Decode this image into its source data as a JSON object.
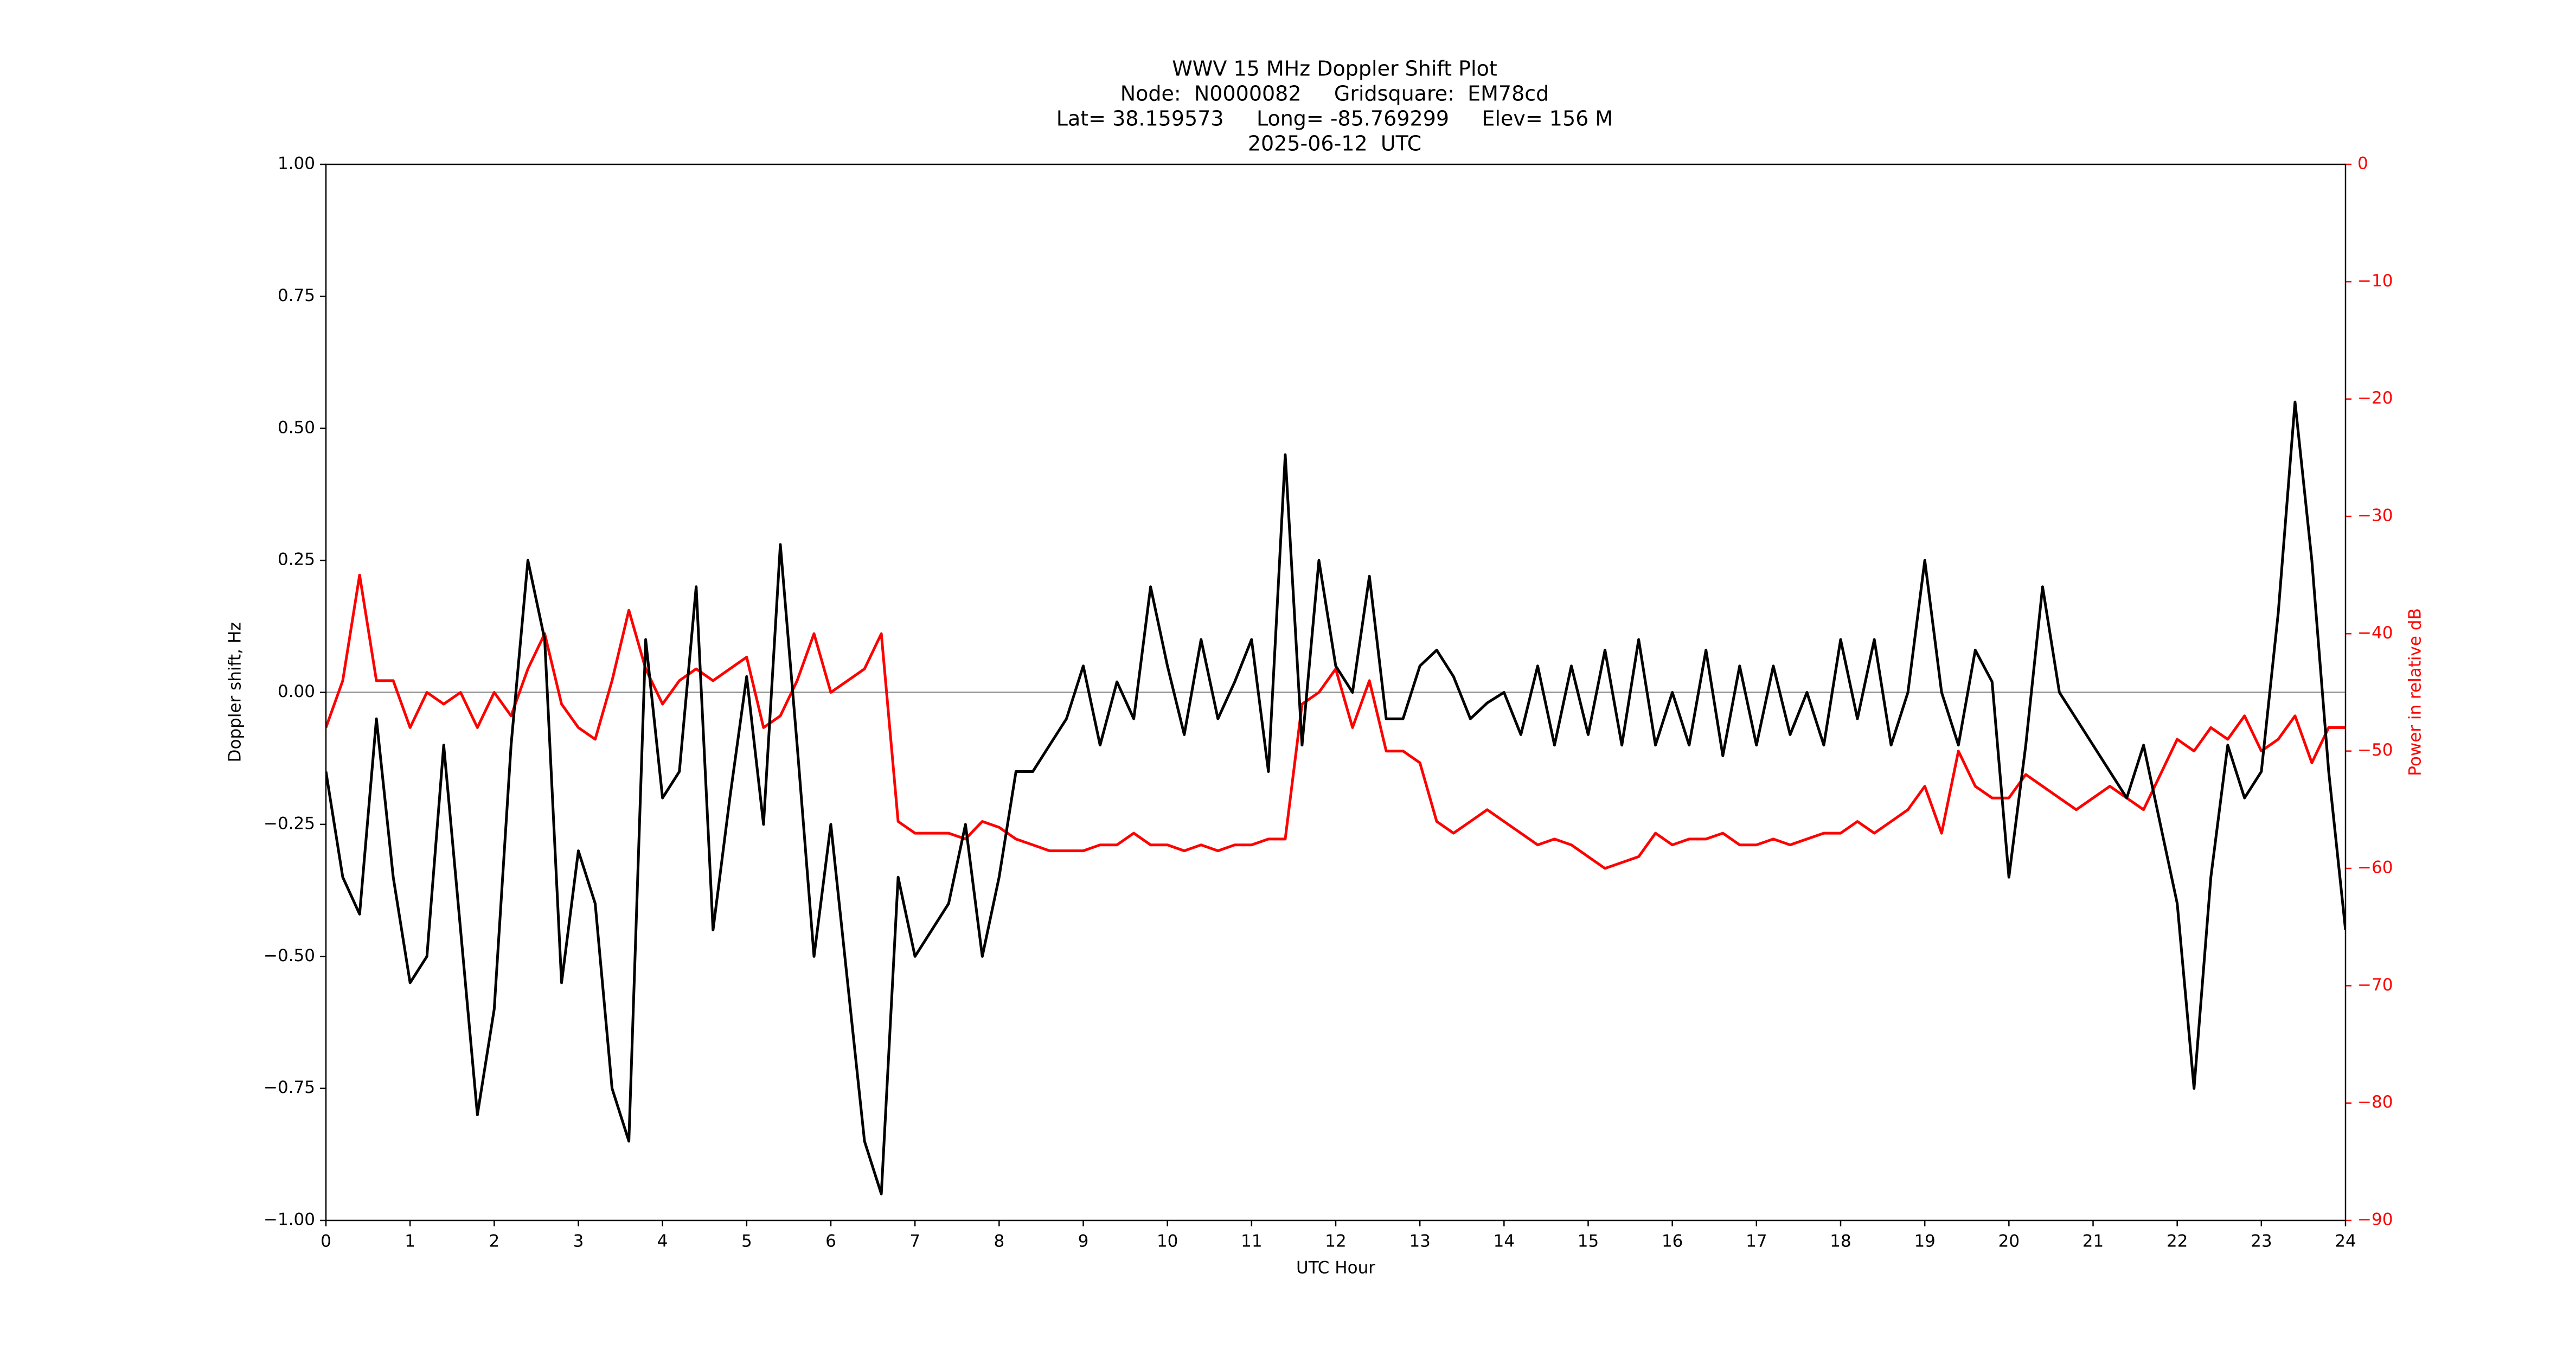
{
  "chart_data": {
    "type": "line",
    "title": [
      "WWV 15 MHz Doppler Shift Plot",
      "Node:  N0000082     Gridsquare:  EM78cd",
      "Lat= 38.159573     Long= -85.769299     Elev= 156 M",
      "2025-06-12  UTC"
    ],
    "xlabel": "UTC Hour",
    "ylabel": "Doppler shift, Hz",
    "y2label": "Power in relative dB",
    "x": [
      0,
      0.2,
      0.4,
      0.6,
      0.8,
      1,
      1.2,
      1.4,
      1.6,
      1.8,
      2,
      2.2,
      2.4,
      2.6,
      2.8,
      3,
      3.2,
      3.4,
      3.6,
      3.8,
      4,
      4.2,
      4.4,
      4.6,
      4.8,
      5,
      5.2,
      5.4,
      5.6,
      5.8,
      6,
      6.2,
      6.4,
      6.6,
      6.8,
      7,
      7.2,
      7.4,
      7.6,
      7.8,
      8,
      8.2,
      8.4,
      8.6,
      8.8,
      9,
      9.2,
      9.4,
      9.6,
      9.8,
      10,
      10.2,
      10.4,
      10.6,
      10.8,
      11,
      11.2,
      11.4,
      11.6,
      11.8,
      12,
      12.2,
      12.4,
      12.6,
      12.8,
      13,
      13.2,
      13.4,
      13.6,
      13.8,
      14,
      14.2,
      14.4,
      14.6,
      14.8,
      15,
      15.2,
      15.4,
      15.6,
      15.8,
      16,
      16.2,
      16.4,
      16.6,
      16.8,
      17,
      17.2,
      17.4,
      17.6,
      17.8,
      18,
      18.2,
      18.4,
      18.6,
      18.8,
      19,
      19.2,
      19.4,
      19.6,
      19.8,
      20,
      20.2,
      20.4,
      20.6,
      20.8,
      21,
      21.2,
      21.4,
      21.6,
      21.8,
      22,
      22.2,
      22.4,
      22.6,
      22.8,
      23,
      23.2,
      23.4,
      23.6,
      23.8,
      24
    ],
    "series": [
      {
        "color": "#000000",
        "axis": "y",
        "values": [
          -0.15,
          -0.35,
          -0.42,
          -0.05,
          -0.35,
          -0.55,
          -0.5,
          -0.1,
          -0.45,
          -0.8,
          -0.6,
          -0.1,
          0.25,
          0.1,
          -0.55,
          -0.3,
          -0.4,
          -0.75,
          -0.85,
          0.1,
          -0.2,
          -0.15,
          0.2,
          -0.45,
          -0.2,
          0.03,
          -0.25,
          0.28,
          -0.1,
          -0.5,
          -0.25,
          -0.55,
          -0.85,
          -0.95,
          -0.35,
          -0.5,
          -0.45,
          -0.4,
          -0.25,
          -0.5,
          -0.35,
          -0.15,
          -0.15,
          -0.1,
          -0.05,
          0.05,
          -0.1,
          0.02,
          -0.05,
          0.2,
          0.05,
          -0.08,
          0.1,
          -0.05,
          0.02,
          0.1,
          -0.15,
          0.45,
          -0.1,
          0.25,
          0.05,
          0,
          0.22,
          -0.05,
          -0.05,
          0.05,
          0.08,
          0.03,
          -0.05,
          -0.02,
          0,
          -0.08,
          0.05,
          -0.1,
          0.05,
          -0.08,
          0.08,
          -0.1,
          0.1,
          -0.1,
          0,
          -0.1,
          0.08,
          -0.12,
          0.05,
          -0.1,
          0.05,
          -0.08,
          0,
          -0.1,
          0.1,
          -0.05,
          0.1,
          -0.1,
          0,
          0.25,
          0,
          -0.1,
          0.08,
          0.02,
          -0.35,
          -0.1,
          0.2,
          0,
          -0.05,
          -0.1,
          -0.15,
          -0.2,
          -0.1,
          -0.25,
          -0.4,
          -0.75,
          -0.35,
          -0.1,
          -0.2,
          -0.15,
          0.15,
          0.55,
          0.25,
          -0.15,
          -0.45
        ]
      },
      {
        "color": "#ff0000",
        "axis": "y2",
        "values": [
          -48,
          -44,
          -35,
          -44,
          -44,
          -48,
          -45,
          -46,
          -45,
          -48,
          -45,
          -47,
          -43,
          -40,
          -46,
          -48,
          -49,
          -44,
          -38,
          -43,
          -46,
          -44,
          -43,
          -44,
          -43,
          -42,
          -48,
          -47,
          -44,
          -40,
          -45,
          -44,
          -43,
          -40,
          -56,
          -57,
          -57,
          -57,
          -57.5,
          -56,
          -56.5,
          -57.5,
          -58,
          -58.5,
          -58.5,
          -58.5,
          -58,
          -58,
          -57,
          -58,
          -58,
          -58.5,
          -58,
          -58.5,
          -58,
          -58,
          -57.5,
          -57.5,
          -46,
          -45,
          -43,
          -48,
          -44,
          -50,
          -50,
          -51,
          -56,
          -57,
          -56,
          -55,
          -56,
          -57,
          -58,
          -57.5,
          -58,
          -59,
          -60,
          -59.5,
          -59,
          -57,
          -58,
          -57.5,
          -57.5,
          -57,
          -58,
          -58,
          -57.5,
          -58,
          -57.5,
          -57,
          -57,
          -56,
          -57,
          -56,
          -55,
          -53,
          -57,
          -50,
          -53,
          -54,
          -54,
          -52,
          -53,
          -54,
          -55,
          -54,
          -53,
          -54,
          -55,
          -52,
          -49,
          -50,
          -48,
          -49,
          -47,
          -50,
          -49,
          -47,
          -51,
          -48,
          -48
        ]
      }
    ],
    "xlim": [
      0,
      24
    ],
    "xticks": [
      0,
      1,
      2,
      3,
      4,
      5,
      6,
      7,
      8,
      9,
      10,
      11,
      12,
      13,
      14,
      15,
      16,
      17,
      18,
      19,
      20,
      21,
      22,
      23,
      24
    ],
    "ylim": [
      -1,
      1
    ],
    "yticks": [
      {
        "value": -1,
        "label": "−1.00"
      },
      {
        "value": -0.75,
        "label": "−0.75"
      },
      {
        "value": -0.5,
        "label": "−0.50"
      },
      {
        "value": -0.25,
        "label": "−0.25"
      },
      {
        "value": 0,
        "label": "0.00"
      },
      {
        "value": 0.25,
        "label": "0.25"
      },
      {
        "value": 0.5,
        "label": "0.50"
      },
      {
        "value": 0.75,
        "label": "0.75"
      },
      {
        "value": 1,
        "label": "1.00"
      }
    ],
    "y2lim": [
      -90,
      0
    ],
    "y2ticks": [
      {
        "value": -90,
        "label": "−90"
      },
      {
        "value": -80,
        "label": "−80"
      },
      {
        "value": -70,
        "label": "−70"
      },
      {
        "value": -60,
        "label": "−60"
      },
      {
        "value": -50,
        "label": "−50"
      },
      {
        "value": -40,
        "label": "−40"
      },
      {
        "value": -30,
        "label": "−30"
      },
      {
        "value": -20,
        "label": "−20"
      },
      {
        "value": -10,
        "label": "−10"
      },
      0
    ],
    "y2color": "#ff0000",
    "zero_line_color": "#999999"
  }
}
